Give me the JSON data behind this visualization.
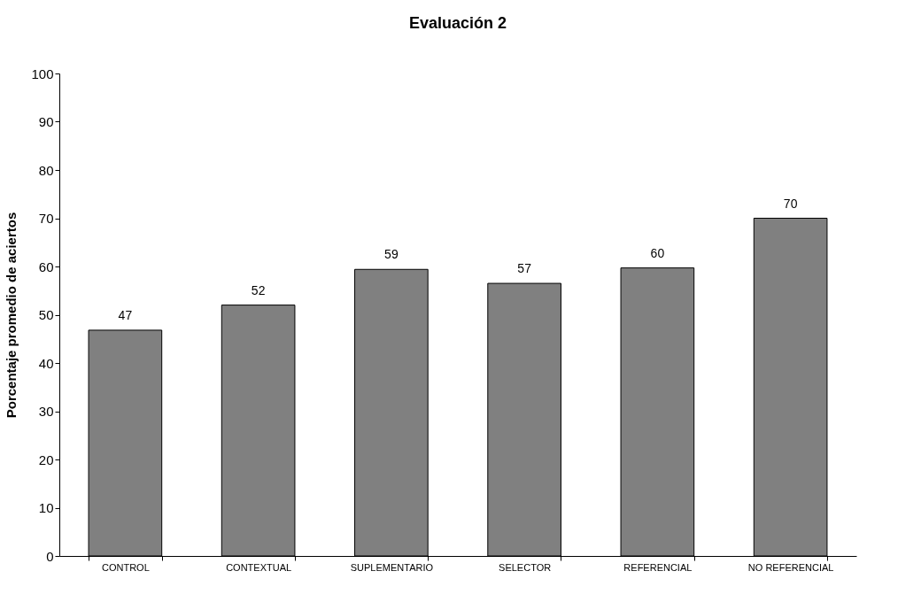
{
  "chart_data": {
    "type": "bar",
    "title": "Evaluación 2",
    "ylabel": "Porcentaje promedio de aciertos",
    "categories": [
      "CONTROL",
      "CONTEXTUAL",
      "SUPLEMENTARIO",
      "SELECTOR",
      "REFERENCIAL",
      "NO REFERENCIAL"
    ],
    "values": [
      46.8,
      52,
      59.4,
      56.5,
      59.7,
      70
    ],
    "value_labels": [
      "47",
      "52",
      "59",
      "57",
      "60",
      "70"
    ],
    "color": "#808080",
    "ylim": [
      0,
      100
    ],
    "yticks": [
      0,
      10,
      20,
      30,
      40,
      50,
      60,
      70,
      80,
      90,
      100
    ],
    "grid": false
  }
}
